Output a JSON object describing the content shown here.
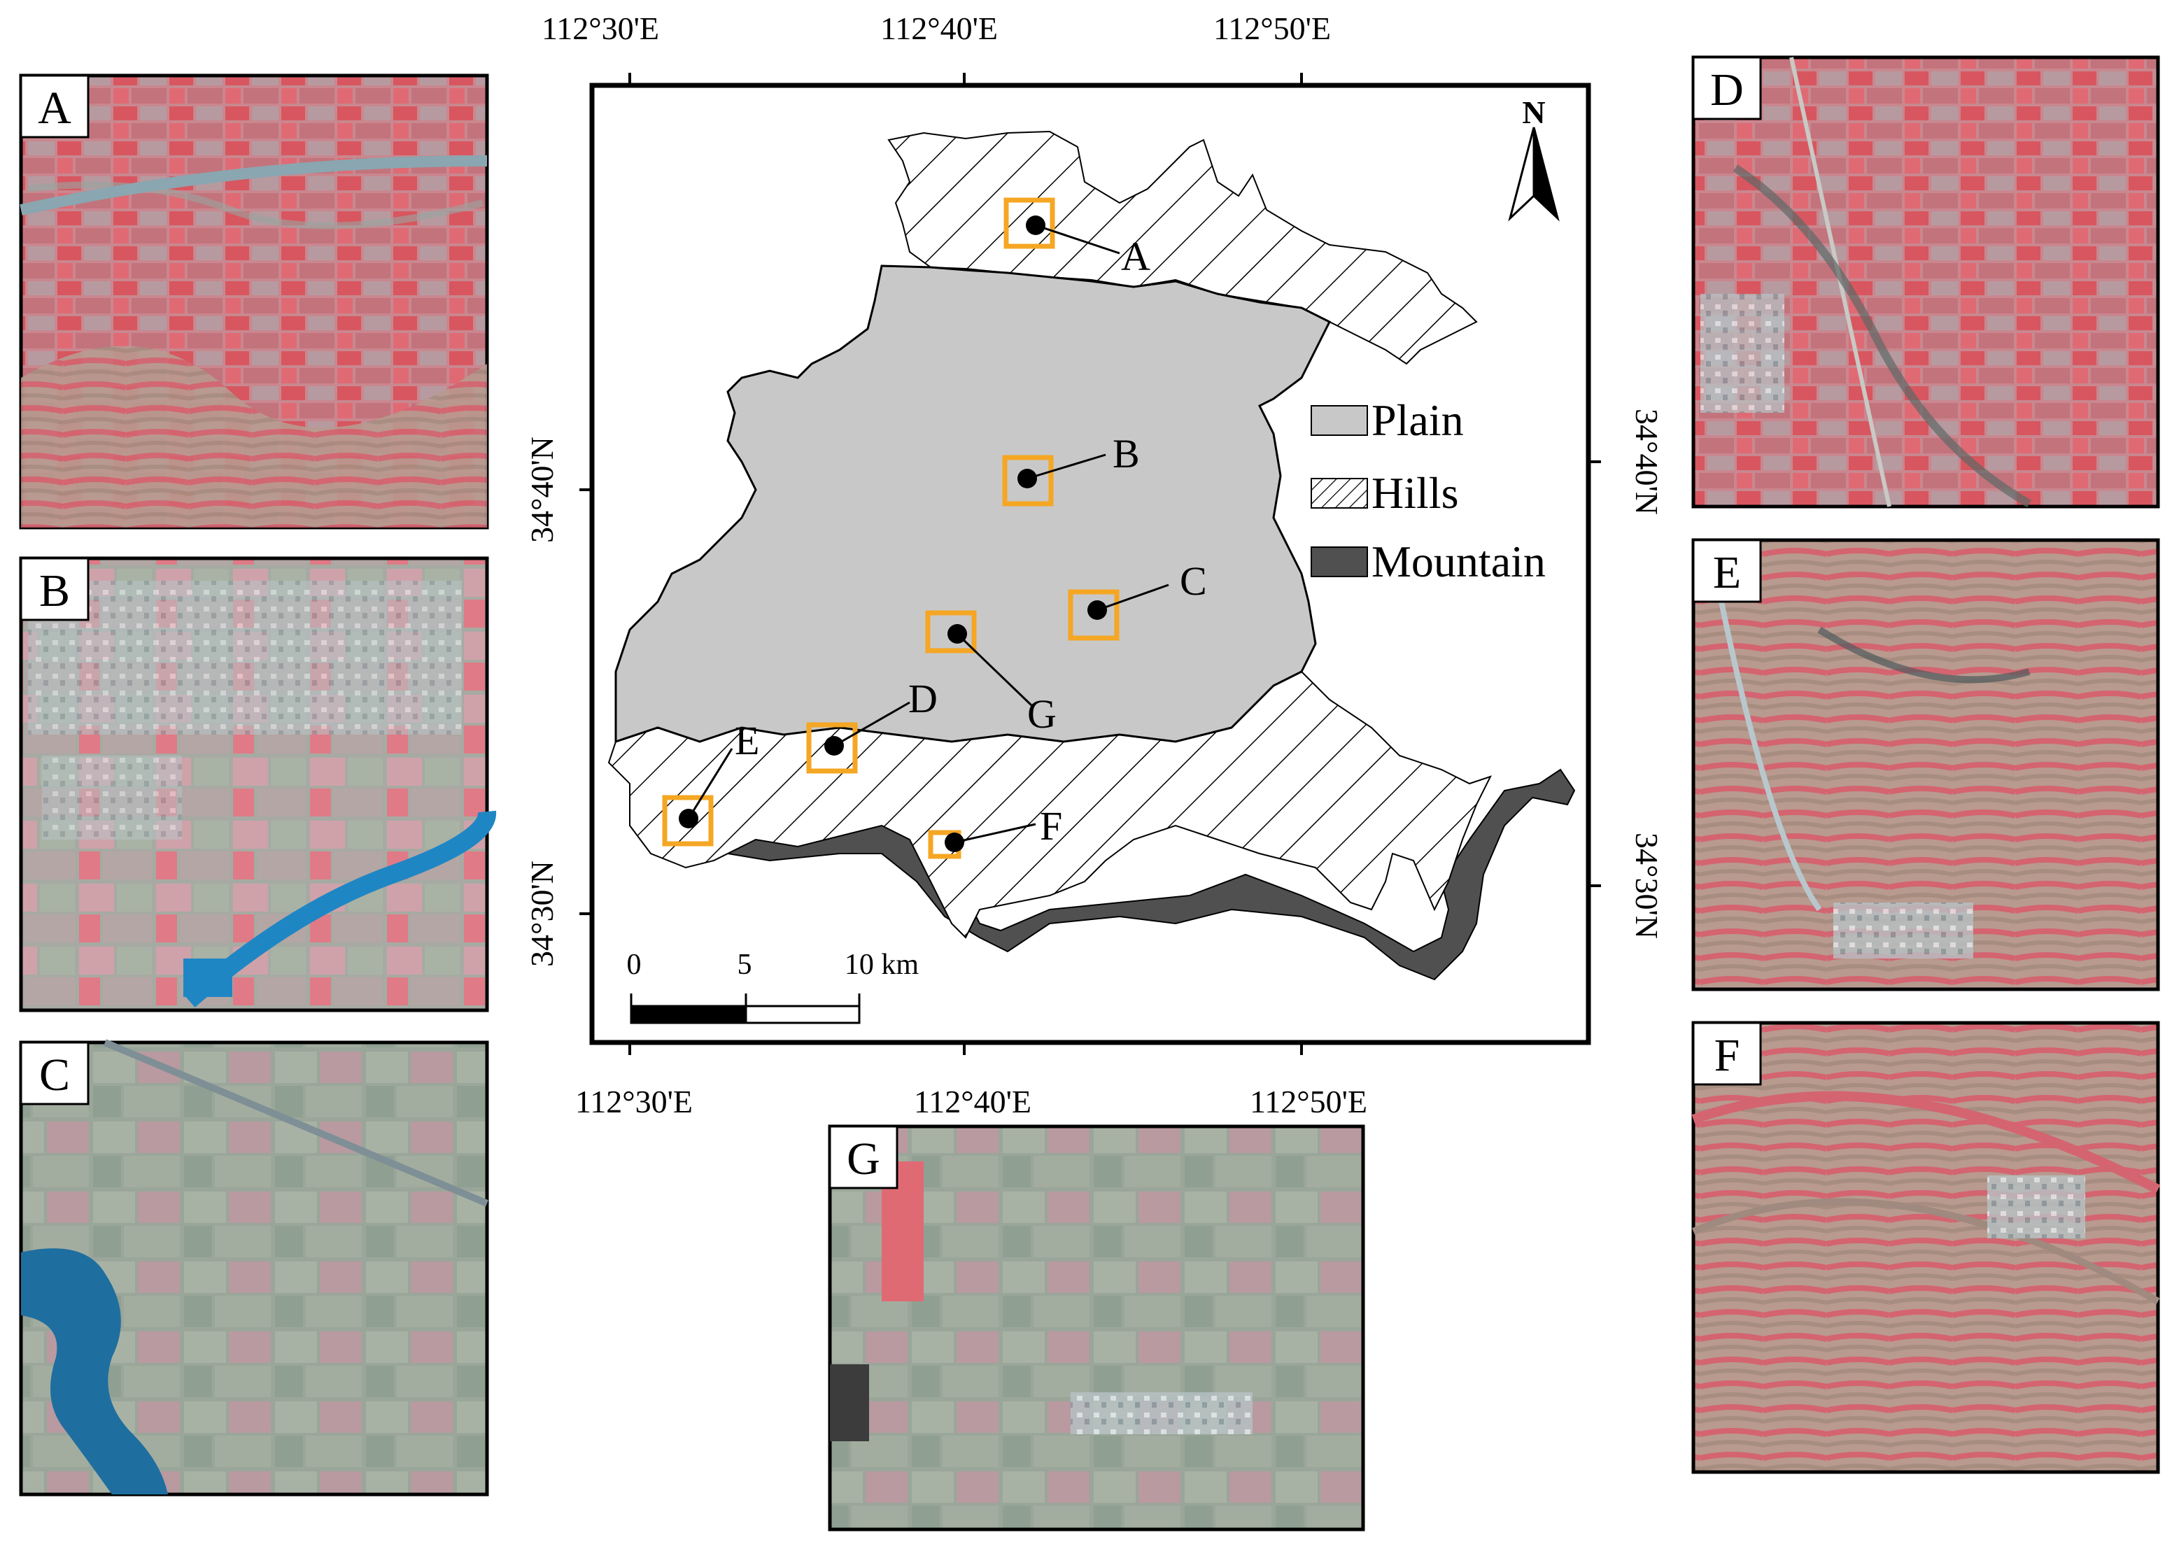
{
  "map": {
    "north_label": "N",
    "top_ticks": [
      "112°30'E",
      "112°40'E",
      "112°50'E"
    ],
    "bottom_ticks": [
      "112°30'E",
      "112°40'E",
      "112°50'E"
    ],
    "left_ticks": [
      "34°40'N",
      "34°30'N"
    ],
    "right_ticks": [
      "34°40'N",
      "34°30'N"
    ],
    "legend": [
      {
        "label": "Plain",
        "color": "#c8c8c8"
      },
      {
        "label": "Hills",
        "color": "#ffffff"
      },
      {
        "label": "Mountain",
        "color": "#505050"
      }
    ],
    "scale_bar": {
      "labels": [
        "0",
        "5",
        "10 km"
      ]
    },
    "sites": [
      "A",
      "B",
      "C",
      "D",
      "E",
      "F",
      "G"
    ],
    "marker_color": "#f5a623"
  },
  "panels": [
    {
      "label": "A"
    },
    {
      "label": "B"
    },
    {
      "label": "C"
    },
    {
      "label": "D"
    },
    {
      "label": "E"
    },
    {
      "label": "F"
    },
    {
      "label": "G"
    }
  ]
}
